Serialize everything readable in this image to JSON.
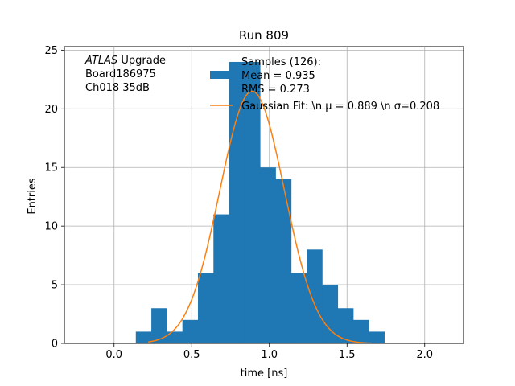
{
  "chart_data": {
    "type": "bar",
    "title": "Run 809",
    "xlabel": "time [ns]",
    "ylabel": "Entries",
    "xlim": [
      -0.32,
      2.25
    ],
    "ylim": [
      0,
      25.3
    ],
    "xticks": [
      0.0,
      0.5,
      1.0,
      1.5,
      2.0
    ],
    "xtick_labels": [
      "0.0",
      "0.5",
      "1.0",
      "1.5",
      "2.0"
    ],
    "yticks": [
      0,
      5,
      10,
      15,
      20,
      25
    ],
    "ytick_labels": [
      "0",
      "5",
      "10",
      "15",
      "20",
      "25"
    ],
    "grid": true,
    "bin_edges": [
      0.14,
      0.24,
      0.34,
      0.44,
      0.54,
      0.64,
      0.74,
      0.84,
      0.94,
      1.04,
      1.14,
      1.24,
      1.34,
      1.44,
      1.54,
      1.64,
      1.74
    ],
    "counts": [
      1,
      3,
      1,
      2,
      6,
      11,
      24,
      24,
      15,
      14,
      6,
      8,
      5,
      3,
      2,
      1
    ],
    "bar_color": "#1f77b4",
    "fit": {
      "name": "Gaussian Fit: \\n $\\mu$ = 0.889 \\n $\\sigma$=0.208",
      "mu": 0.889,
      "sigma": 0.208,
      "amplitude": 21.5,
      "x_range": [
        0.22,
        1.66
      ],
      "color": "#ff7f0e"
    },
    "legend": {
      "position": "top-right",
      "entries": [
        {
          "label_lines": [
            "Samples (126):",
            " Mean = 0.935",
            " RMS = 0.273"
          ],
          "kind": "patch",
          "color": "#1f77b4"
        },
        {
          "label_lines": [
            "Gaussian Fit: \\n μ = 0.889 \\n σ=0.208"
          ],
          "kind": "line",
          "color": "#ff7f0e"
        }
      ]
    },
    "annotation": {
      "lines": [
        "ATLAS Upgrade",
        " Board186975",
        " Ch018 35dB"
      ],
      "italic_word": "ATLAS"
    }
  }
}
